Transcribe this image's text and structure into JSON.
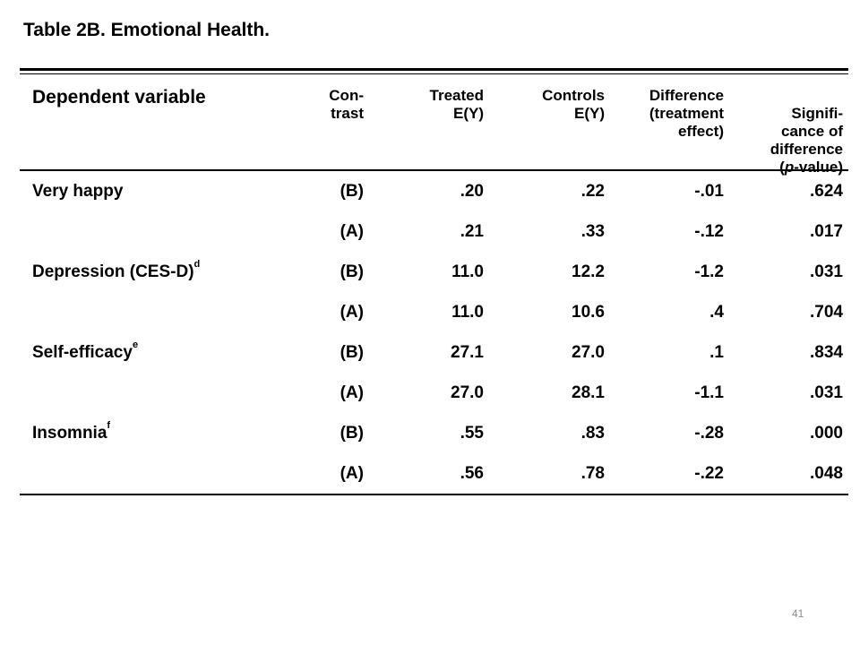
{
  "title": "Table 2B.  Emotional Health.",
  "headers": {
    "dependent_variable": "Dependent variable",
    "contrast": "Con-\ntrast",
    "treated": "Treated\nE(Y)",
    "controls": "Controls\nE(Y)",
    "difference": "Difference\n(treatment\neffect)",
    "significance": "Signifi-\ncance of\ndifference\n(p-value)"
  },
  "rows": [
    {
      "variable": "Very happy",
      "sup": "",
      "contrast": "(B)",
      "treated": ".20",
      "controls": ".22",
      "difference": "-.01",
      "pvalue": ".624"
    },
    {
      "variable": "",
      "sup": "",
      "contrast": "(A)",
      "treated": ".21",
      "controls": ".33",
      "difference": "-.12",
      "pvalue": ".017"
    },
    {
      "variable": "Depression (CES-D)",
      "sup": "d",
      "contrast": "(B)",
      "treated": "11.0",
      "controls": "12.2",
      "difference": "-1.2",
      "pvalue": ".031"
    },
    {
      "variable": "",
      "sup": "",
      "contrast": "(A)",
      "treated": "11.0",
      "controls": "10.6",
      "difference": ".4",
      "pvalue": ".704"
    },
    {
      "variable": "Self-efficacy",
      "sup": "e",
      "contrast": "(B)",
      "treated": "27.1",
      "controls": "27.0",
      "difference": ".1",
      "pvalue": ".834"
    },
    {
      "variable": "",
      "sup": "",
      "contrast": "(A)",
      "treated": "27.0",
      "controls": "28.1",
      "difference": "-1.1",
      "pvalue": ".031"
    },
    {
      "variable": "Insomnia",
      "sup": "f",
      "contrast": "(B)",
      "treated": ".55",
      "controls": ".83",
      "difference": "-.28",
      "pvalue": ".000"
    },
    {
      "variable": "",
      "sup": "",
      "contrast": "(A)",
      "treated": ".56",
      "controls": ".78",
      "difference": "-.22",
      "pvalue": ".048"
    }
  ],
  "page_number": "41"
}
